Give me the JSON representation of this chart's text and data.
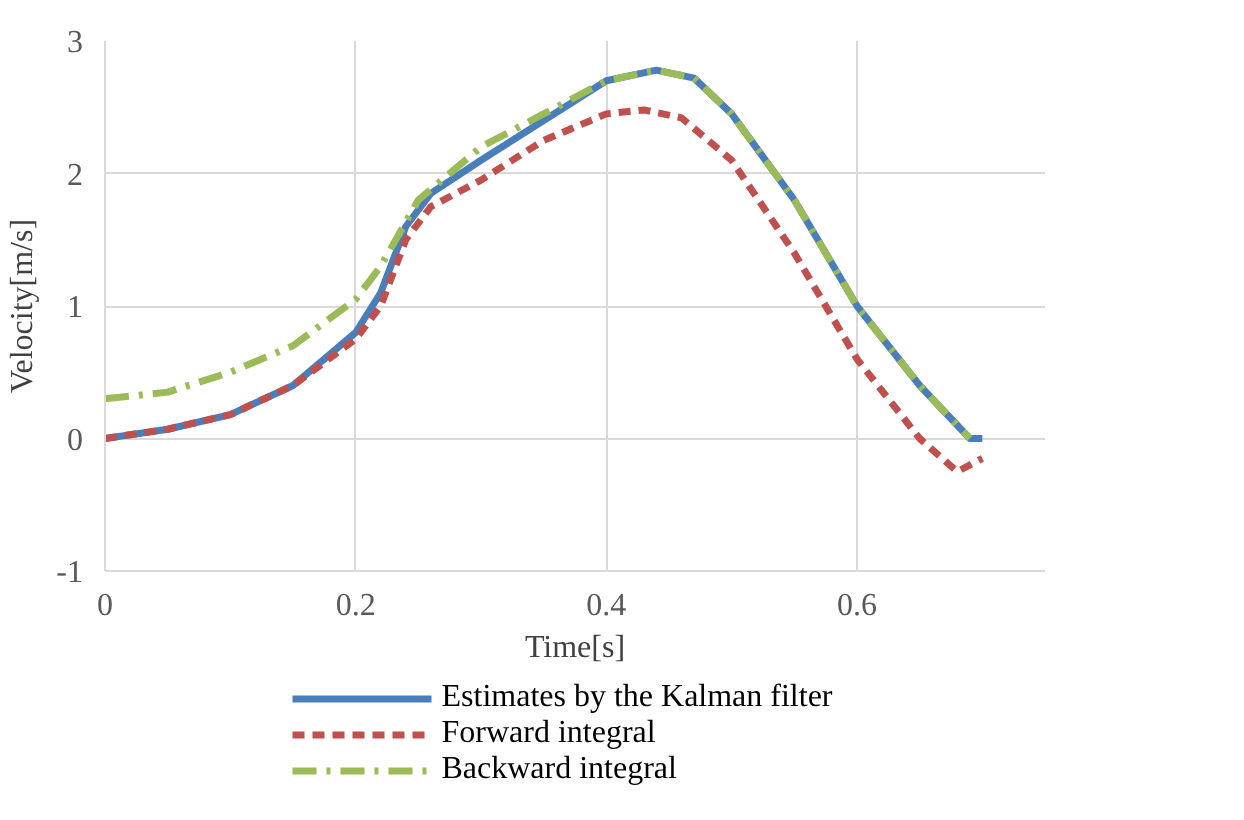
{
  "chart_data": {
    "type": "line",
    "xlabel": "Time[s]",
    "ylabel": "Velocity[m/s]",
    "xlim": [
      0,
      0.75
    ],
    "xticks": [
      0,
      0.2,
      0.4,
      0.6
    ],
    "ylim": [
      -1,
      3
    ],
    "yticks": [
      -1,
      0,
      1,
      2,
      3
    ],
    "grid": true,
    "legend": "bottom",
    "marker": "none",
    "series": [
      {
        "name": "Estimates by the Kalman filter",
        "color": "#4a7ebb",
        "line_style": "solid",
        "x": [
          0,
          0.05,
          0.1,
          0.15,
          0.2,
          0.22,
          0.24,
          0.26,
          0.3,
          0.35,
          0.4,
          0.44,
          0.47,
          0.5,
          0.55,
          0.6,
          0.65,
          0.68,
          0.69,
          0.7
        ],
        "values": [
          0,
          0.07,
          0.18,
          0.4,
          0.8,
          1.1,
          1.6,
          1.85,
          2.1,
          2.4,
          2.7,
          2.78,
          2.72,
          2.45,
          1.8,
          1.0,
          0.4,
          0.1,
          0.0,
          0.0
        ]
      },
      {
        "name": "Forward integral",
        "color": "#c0504d",
        "line_style": "dashed",
        "x": [
          0,
          0.05,
          0.1,
          0.15,
          0.2,
          0.22,
          0.24,
          0.26,
          0.3,
          0.35,
          0.4,
          0.43,
          0.46,
          0.5,
          0.55,
          0.6,
          0.65,
          0.68,
          0.7
        ],
        "values": [
          0,
          0.07,
          0.18,
          0.4,
          0.75,
          1.0,
          1.5,
          1.75,
          1.95,
          2.25,
          2.45,
          2.48,
          2.42,
          2.1,
          1.4,
          0.6,
          0.0,
          -0.25,
          -0.15
        ]
      },
      {
        "name": "Backward integral",
        "color": "#9bbb59",
        "line_style": "dashdot",
        "x": [
          0,
          0.05,
          0.1,
          0.15,
          0.2,
          0.22,
          0.25,
          0.3,
          0.35,
          0.4,
          0.44,
          0.47,
          0.5,
          0.55,
          0.6,
          0.65,
          0.68,
          0.69
        ],
        "values": [
          0.3,
          0.35,
          0.5,
          0.7,
          1.05,
          1.3,
          1.8,
          2.2,
          2.45,
          2.7,
          2.78,
          2.72,
          2.45,
          1.8,
          1.0,
          0.4,
          0.1,
          0.0
        ]
      }
    ]
  }
}
